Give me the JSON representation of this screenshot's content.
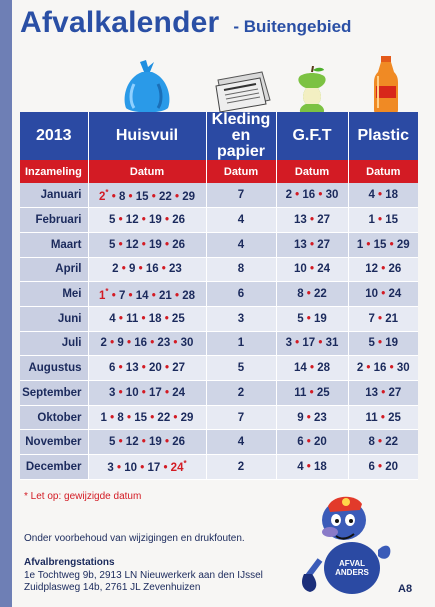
{
  "header": {
    "title": "Afvalkalender",
    "subtitle": "- Buitengebied"
  },
  "table": {
    "year": "2013",
    "columns": [
      "Huisvuil",
      "Kleding en papier",
      "G.F.T",
      "Plastic"
    ],
    "subheader": {
      "first": "Inzameling",
      "cells": [
        "Datum",
        "Datum",
        "Datum",
        "Datum"
      ]
    },
    "rows": [
      {
        "month": "Januari",
        "huisvuil": [
          {
            "v": "2",
            "c": true
          },
          {
            "v": "8"
          },
          {
            "v": "15"
          },
          {
            "v": "22"
          },
          {
            "v": "29"
          }
        ],
        "kleding": [
          {
            "v": "7"
          }
        ],
        "gft": [
          {
            "v": "2"
          },
          {
            "v": "16"
          },
          {
            "v": "30"
          }
        ],
        "plastic": [
          {
            "v": "4"
          },
          {
            "v": "18"
          }
        ]
      },
      {
        "month": "Februari",
        "huisvuil": [
          {
            "v": "5"
          },
          {
            "v": "12"
          },
          {
            "v": "19"
          },
          {
            "v": "26"
          }
        ],
        "kleding": [
          {
            "v": "4"
          }
        ],
        "gft": [
          {
            "v": "13"
          },
          {
            "v": "27"
          }
        ],
        "plastic": [
          {
            "v": "1"
          },
          {
            "v": "15"
          }
        ]
      },
      {
        "month": "Maart",
        "huisvuil": [
          {
            "v": "5"
          },
          {
            "v": "12"
          },
          {
            "v": "19"
          },
          {
            "v": "26"
          }
        ],
        "kleding": [
          {
            "v": "4"
          }
        ],
        "gft": [
          {
            "v": "13"
          },
          {
            "v": "27"
          }
        ],
        "plastic": [
          {
            "v": "1"
          },
          {
            "v": "15"
          },
          {
            "v": "29"
          }
        ]
      },
      {
        "month": "April",
        "huisvuil": [
          {
            "v": "2"
          },
          {
            "v": "9"
          },
          {
            "v": "16"
          },
          {
            "v": "23"
          }
        ],
        "kleding": [
          {
            "v": "8"
          }
        ],
        "gft": [
          {
            "v": "10"
          },
          {
            "v": "24"
          }
        ],
        "plastic": [
          {
            "v": "12"
          },
          {
            "v": "26"
          }
        ]
      },
      {
        "month": "Mei",
        "huisvuil": [
          {
            "v": "1",
            "c": true
          },
          {
            "v": "7"
          },
          {
            "v": "14"
          },
          {
            "v": "21"
          },
          {
            "v": "28"
          }
        ],
        "kleding": [
          {
            "v": "6"
          }
        ],
        "gft": [
          {
            "v": "8"
          },
          {
            "v": "22"
          }
        ],
        "plastic": [
          {
            "v": "10"
          },
          {
            "v": "24"
          }
        ]
      },
      {
        "month": "Juni",
        "huisvuil": [
          {
            "v": "4"
          },
          {
            "v": "11"
          },
          {
            "v": "18"
          },
          {
            "v": "25"
          }
        ],
        "kleding": [
          {
            "v": "3"
          }
        ],
        "gft": [
          {
            "v": "5"
          },
          {
            "v": "19"
          }
        ],
        "plastic": [
          {
            "v": "7"
          },
          {
            "v": "21"
          }
        ]
      },
      {
        "month": "Juli",
        "huisvuil": [
          {
            "v": "2"
          },
          {
            "v": "9"
          },
          {
            "v": "16"
          },
          {
            "v": "23"
          },
          {
            "v": "30"
          }
        ],
        "kleding": [
          {
            "v": "1"
          }
        ],
        "gft": [
          {
            "v": "3"
          },
          {
            "v": "17"
          },
          {
            "v": "31"
          }
        ],
        "plastic": [
          {
            "v": "5"
          },
          {
            "v": "19"
          }
        ]
      },
      {
        "month": "Augustus",
        "huisvuil": [
          {
            "v": "6"
          },
          {
            "v": "13"
          },
          {
            "v": "20"
          },
          {
            "v": "27"
          }
        ],
        "kleding": [
          {
            "v": "5"
          }
        ],
        "gft": [
          {
            "v": "14"
          },
          {
            "v": "28"
          }
        ],
        "plastic": [
          {
            "v": "2"
          },
          {
            "v": "16"
          },
          {
            "v": "30"
          }
        ]
      },
      {
        "month": "September",
        "huisvuil": [
          {
            "v": "3"
          },
          {
            "v": "10"
          },
          {
            "v": "17"
          },
          {
            "v": "24"
          }
        ],
        "kleding": [
          {
            "v": "2"
          }
        ],
        "gft": [
          {
            "v": "11"
          },
          {
            "v": "25"
          }
        ],
        "plastic": [
          {
            "v": "13"
          },
          {
            "v": "27"
          }
        ]
      },
      {
        "month": "Oktober",
        "huisvuil": [
          {
            "v": "1"
          },
          {
            "v": "8"
          },
          {
            "v": "15"
          },
          {
            "v": "22"
          },
          {
            "v": "29"
          }
        ],
        "kleding": [
          {
            "v": "7"
          }
        ],
        "gft": [
          {
            "v": "9"
          },
          {
            "v": "23"
          }
        ],
        "plastic": [
          {
            "v": "11"
          },
          {
            "v": "25"
          }
        ]
      },
      {
        "month": "November",
        "huisvuil": [
          {
            "v": "5"
          },
          {
            "v": "12"
          },
          {
            "v": "19"
          },
          {
            "v": "26"
          }
        ],
        "kleding": [
          {
            "v": "4"
          }
        ],
        "gft": [
          {
            "v": "6"
          },
          {
            "v": "20"
          }
        ],
        "plastic": [
          {
            "v": "8"
          },
          {
            "v": "22"
          }
        ]
      },
      {
        "month": "December",
        "huisvuil": [
          {
            "v": "3"
          },
          {
            "v": "10"
          },
          {
            "v": "17"
          },
          {
            "v": "24",
            "c": true
          }
        ],
        "kleding": [
          {
            "v": "2"
          }
        ],
        "gft": [
          {
            "v": "4"
          },
          {
            "v": "18"
          }
        ],
        "plastic": [
          {
            "v": "6"
          },
          {
            "v": "20"
          }
        ]
      }
    ]
  },
  "footer": {
    "note": "* Let op: gewijzigde datum",
    "disclaimer": "Onder voorbehoud van wijzigingen en drukfouten.",
    "stations_title": "Afvalbrengstations",
    "station_lines": [
      "1e Tochtweg 9b, 2913 LN Nieuwerkerk aan den IJssel",
      "Zuidplasweg 14b, 2761 JL Zevenhuizen"
    ],
    "page_label": "A8",
    "mascot_text": [
      "AFVAL",
      "ANDERS"
    ]
  },
  "icons": [
    "garbage-bag-icon",
    "newspaper-icon",
    "apple-core-icon",
    "plastic-bottle-icon"
  ],
  "colors": {
    "header_blue": "#2b4aa3",
    "accent_red": "#d31b24",
    "row_light": "#e7eaf3",
    "row_dark": "#cfd5e6",
    "text_navy": "#1b2a5c",
    "title_blue": "#2a4fa5"
  }
}
